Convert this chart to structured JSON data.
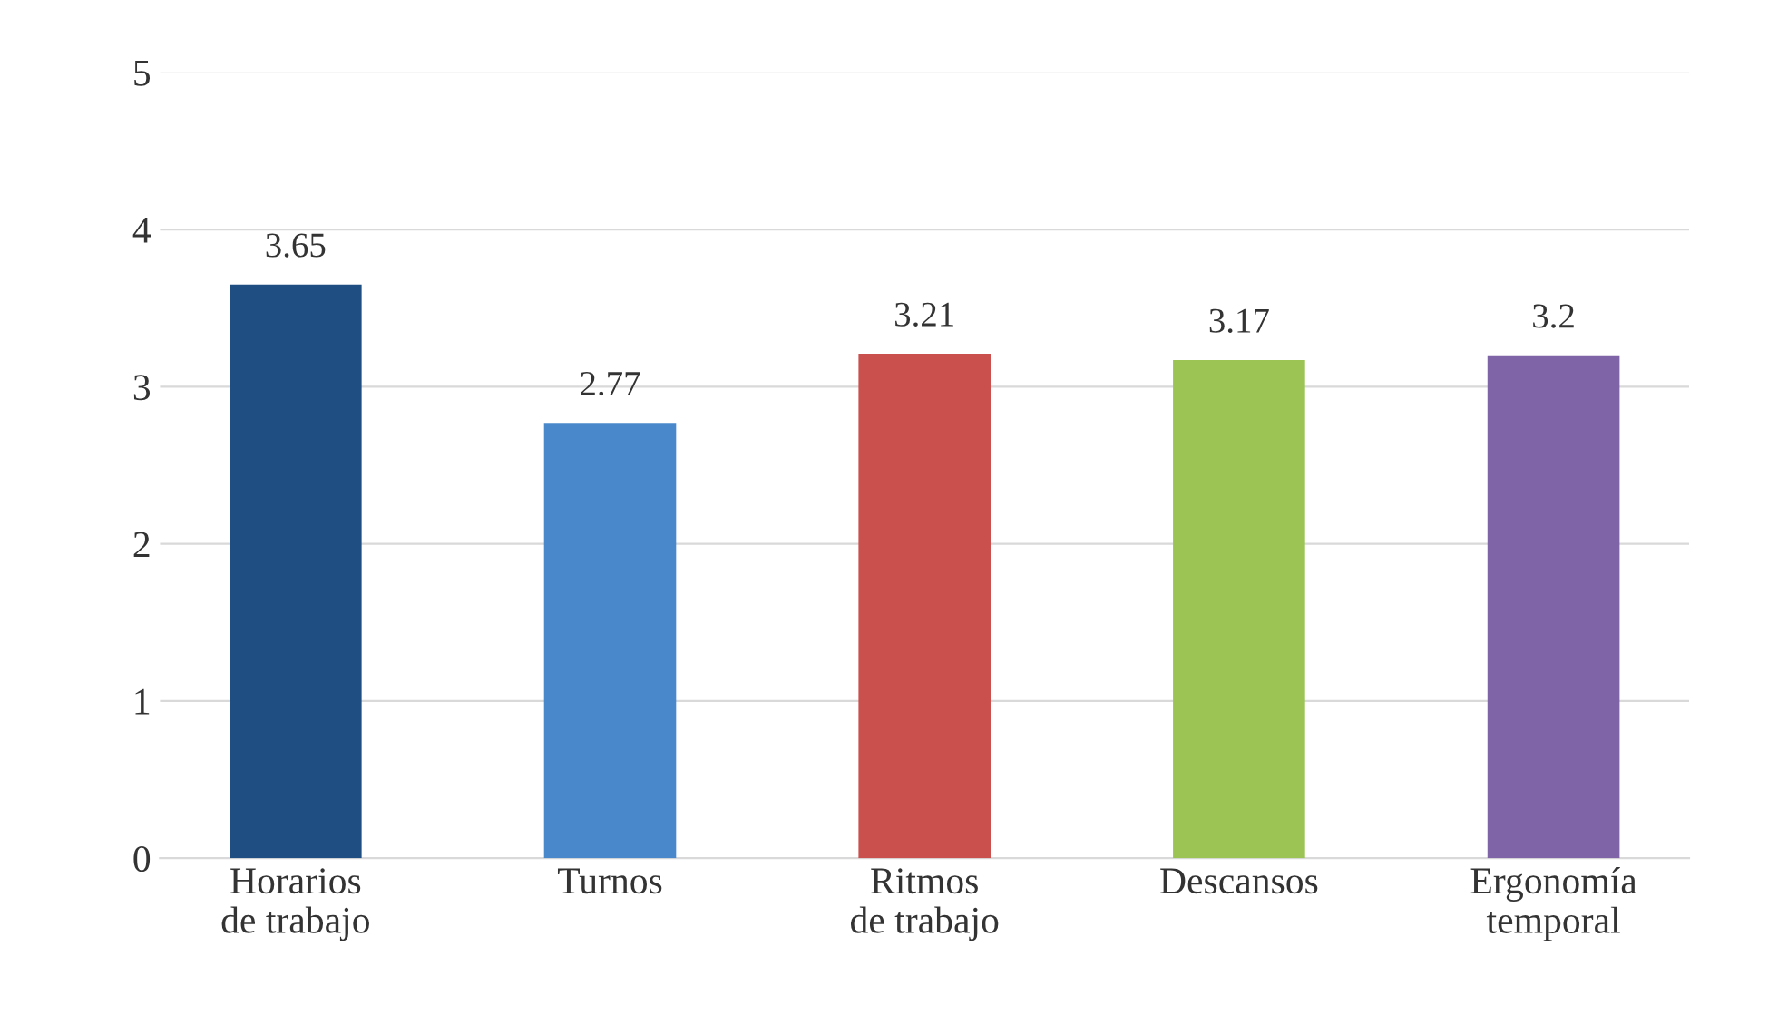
{
  "chart_data": {
    "type": "bar",
    "categories": [
      "Horarios de trabajo",
      "Turnos",
      "Ritmos de trabajo",
      "Descansos",
      "Ergonomía temporal"
    ],
    "values": [
      3.65,
      2.77,
      3.21,
      3.17,
      3.2
    ],
    "colors": [
      "#1f4e82",
      "#4a88cc",
      "#c9504d",
      "#9cc455",
      "#8064a8"
    ],
    "ylim": [
      0,
      5
    ],
    "yticks": [
      0,
      1,
      2,
      3,
      4,
      5
    ],
    "grid": "y",
    "data_labels": true
  }
}
